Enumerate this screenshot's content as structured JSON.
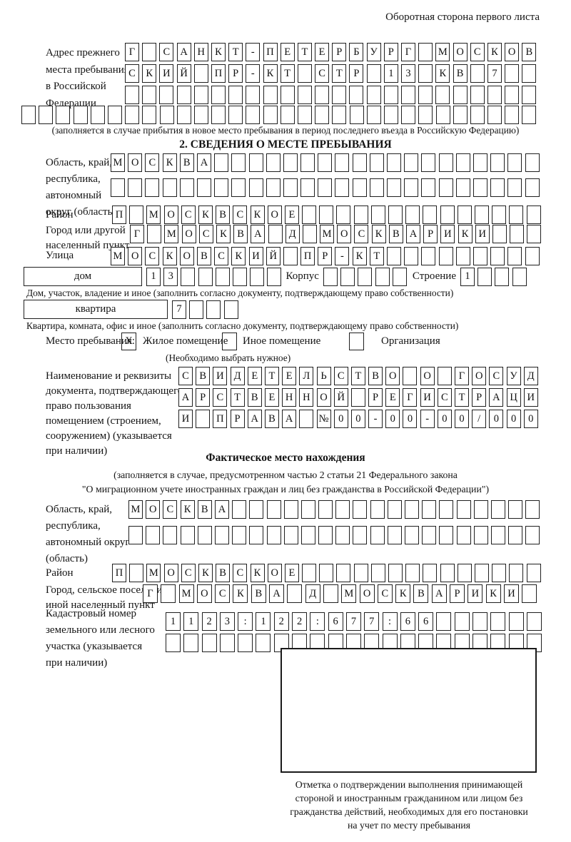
{
  "page": {
    "header_note": "Оборотная сторона первого листа"
  },
  "prev_address": {
    "label_lines": [
      "Адрес прежнего",
      "места пребывания",
      "в Российской",
      "Федерации"
    ],
    "rows": [
      {
        "text": "Г САНКТ-ПЕТЕРБУРГ МОСКОВ",
        "len": 24
      },
      {
        "text": "СКИЙ ПР-КТ СТР 13 КВ 7",
        "len": 24
      },
      {
        "text": "",
        "len": 24
      },
      {
        "text": "",
        "len": 30
      }
    ],
    "footnote": "(заполняется в случае прибытия в новое место пребывания в период последнего въезда в Российскую Федерацию)"
  },
  "section2": {
    "title": "2. СВЕДЕНИЯ О МЕСТЕ ПРЕБЫВАНИЯ",
    "oblast": {
      "label_lines": [
        "Область, край,",
        "республика,",
        "автономный",
        "округ (область)"
      ],
      "rows": [
        {
          "text": "МОСКВА",
          "len": 25
        },
        {
          "text": "",
          "len": 25
        }
      ]
    },
    "rayon": {
      "label": "Район",
      "row": {
        "text": "П МОСКВСКОЕ",
        "len": 25
      }
    },
    "gorod": {
      "label_lines": [
        "Город или другой",
        "населенный пункт"
      ],
      "row": {
        "text": "Г МОСКВА Д МОСКВАРИКИ",
        "len": 24
      }
    },
    "ulitsa": {
      "label": "Улица",
      "row": {
        "text": "МОСКОВСКИЙ ПР-КТ",
        "len": 25
      }
    },
    "dom": {
      "box_label": "дом",
      "cells": {
        "text": "13",
        "len": 8
      },
      "korpus_label": "Корпус",
      "korpus_cells": {
        "text": "",
        "len": 5
      },
      "stroenie_label": "Строение",
      "stroenie_cells": {
        "text": "1",
        "len": 4
      },
      "caption": "Дом, участок, владение и иное (заполнить согласно документу, подтверждающему право собственности)"
    },
    "kvartira": {
      "box_label": "квартира",
      "cells": {
        "text": "7",
        "len": 4
      },
      "caption": "Квартира, комната, офис и иное (заполнить согласно документу, подтверждающему право собственности)"
    },
    "mesto": {
      "label": "Место пребывания:",
      "options": [
        {
          "label": "Жилое помещение",
          "mark": "X"
        },
        {
          "label": "Иное помещение",
          "mark": ""
        },
        {
          "label": "Организация",
          "mark": ""
        }
      ],
      "note": "(Необходимо выбрать нужное)"
    },
    "doc": {
      "label_lines": [
        "Наименование и реквизиты",
        "документа, подтверждающего",
        "право пользования",
        "помещением (строением,",
        "сооружением) (указывается",
        "при наличии)"
      ],
      "rows": [
        {
          "text": "СВИДЕТЕЛЬСТВО О ГОСУД",
          "len": 21
        },
        {
          "text": "АРСТВЕННОЙ РЕГИСТРАЦИ",
          "len": 21
        },
        {
          "text": "И ПРАВА №00-00-00/000",
          "len": 21
        }
      ]
    }
  },
  "fact": {
    "title": "Фактическое место нахождения",
    "note_lines": [
      "(заполняется в случае, предусмотренном частью 2 статьи 21 Федерального закона",
      "\"О миграционном учете иностранных граждан и лиц без гражданства в Российской Федерации\")"
    ],
    "oblast": {
      "label_lines": [
        "Область, край,",
        "республика,",
        "автономный округ",
        "(область)"
      ],
      "rows": [
        {
          "text": "МОСКВА",
          "len": 24
        },
        {
          "text": "",
          "len": 24
        }
      ]
    },
    "rayon": {
      "label": "Район",
      "row": {
        "text": "П МОСКВСКОЕ",
        "len": 25
      }
    },
    "gorod": {
      "label_lines": [
        "Город, сельское поселение,",
        "иной населенный пункт"
      ],
      "row": {
        "text": "Г МОСКВА Д МОСКВАРИКИ",
        "len": 22
      }
    },
    "kadastr": {
      "label_lines": [
        "Кадастровый номер",
        "земельного или лесного",
        "участка (указывается",
        "при наличии)"
      ],
      "rows": [
        {
          "text": "1123:122:677:66",
          "len": 21
        },
        {
          "text": "",
          "len": 21
        }
      ]
    },
    "stamp_caption_lines": [
      "Отметка о подтверждении выполнения принимающей",
      "стороной и иностранным гражданином или лицом без",
      "гражданства действий, необходимых для его постановки",
      "на учет по месту пребывания"
    ]
  }
}
